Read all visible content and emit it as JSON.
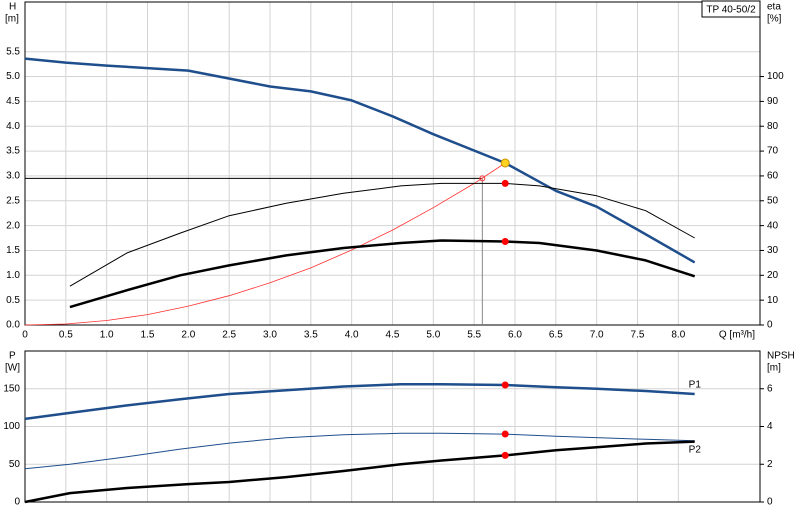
{
  "chart_data": [
    {
      "type": "line",
      "xlabel": "Q [m³/h]",
      "ylabel": "H",
      "ylabel_unit": "[m]",
      "y2label": "eta",
      "y2label_unit": "[%]",
      "legend_title": "TP 40-50/2",
      "legend_position": "top-right",
      "xlim": [
        0,
        9
      ],
      "ylim": [
        0,
        6.5
      ],
      "y2lim": [
        0,
        130
      ],
      "grid": true,
      "xticks": [
        0,
        0.5,
        {
          "value": 1,
          "label": "1.0"
        },
        1.5,
        {
          "value": 2,
          "label": "2.0"
        },
        2.5,
        {
          "value": 3,
          "label": "3.0"
        },
        3.5,
        {
          "value": 4,
          "label": "4.0"
        },
        4.5,
        {
          "value": 5,
          "label": "5.0"
        },
        5.5,
        {
          "value": 6,
          "label": "6.0"
        },
        6.5,
        {
          "value": 7,
          "label": "7.0"
        },
        7.5,
        {
          "value": 8,
          "label": "8.0"
        }
      ],
      "yticks": [
        {
          "value": 0,
          "label": "0.0"
        },
        0.5,
        {
          "value": 1,
          "label": "1.0"
        },
        1.5,
        {
          "value": 2,
          "label": "2.0"
        },
        2.5,
        {
          "value": 3,
          "label": "3.0"
        },
        3.5,
        {
          "value": 4,
          "label": "4.0"
        },
        4.5,
        {
          "value": 5,
          "label": "5.0"
        },
        5.5
      ],
      "y2ticks": [
        0,
        10,
        20,
        30,
        40,
        50,
        60,
        70,
        80,
        90,
        100
      ],
      "series": [
        {
          "color": "#1f4e8c",
          "width": 2.5,
          "x": [
            0,
            0.5,
            1,
            2,
            3,
            3.5,
            4,
            4.5,
            5,
            5.88,
            6.5,
            7,
            7.5,
            8.2
          ],
          "values": [
            5.36,
            5.28,
            5.22,
            5.12,
            4.8,
            4.7,
            4.52,
            4.2,
            3.84,
            3.26,
            2.7,
            2.38,
            1.92,
            1.26
          ]
        },
        {
          "color": "#ff3030",
          "width": 0.8,
          "x": [
            0,
            0.5,
            1,
            1.5,
            2,
            2.5,
            3,
            3.5,
            4,
            4.5,
            5,
            5.5,
            5.88
          ],
          "values": [
            0,
            0.02,
            0.09,
            0.21,
            0.38,
            0.59,
            0.85,
            1.15,
            1.51,
            1.91,
            2.36,
            2.85,
            3.26
          ]
        },
        {
          "color": "#000000",
          "width": 1,
          "axis": "y2",
          "x": [
            0.55,
            1.25,
            1.9,
            2.5,
            3.2,
            3.9,
            4.6,
            5.1,
            5.88,
            6.3,
            7,
            7.6,
            8.2
          ],
          "values": [
            15.6,
            29,
            37,
            44,
            49,
            53,
            56,
            57,
            57,
            56,
            52,
            46,
            35
          ],
          "markers": [
            {
              "x": 5.88,
              "y": 57,
              "color": "#ff0000"
            }
          ]
        },
        {
          "color": "#000000",
          "width": 2.5,
          "axis": "y2",
          "x": [
            0.55,
            1.25,
            1.9,
            2.5,
            3.2,
            3.9,
            4.6,
            5.1,
            5.88,
            6.3,
            7,
            7.6,
            8.2
          ],
          "values": [
            7.2,
            14,
            20,
            24,
            28,
            31,
            33,
            34,
            33.6,
            33,
            30,
            26,
            19.6
          ],
          "markers": [
            {
              "x": 5.88,
              "y": 33.6,
              "color": "#ff0000"
            }
          ]
        }
      ],
      "duty_point": {
        "x": 5.88,
        "y": 3.26,
        "color": "#ffd21f"
      },
      "reference": {
        "x": 5.6,
        "y": 2.95
      }
    },
    {
      "type": "line",
      "ylabel": "P",
      "ylabel_unit": "[W]",
      "y2label": "NPSH",
      "y2label_unit": "[m]",
      "xlim": [
        0,
        9
      ],
      "ylim": [
        0,
        200
      ],
      "y2lim": [
        0,
        8
      ],
      "grid": true,
      "yticks": [
        0,
        50,
        100,
        150
      ],
      "y2ticks": [
        0,
        2,
        4,
        6
      ],
      "series": [
        {
          "name": "P1",
          "color": "#1f4e8c",
          "width": 2.5,
          "x": [
            0,
            0.55,
            1.25,
            1.9,
            2.5,
            3.2,
            3.9,
            4.6,
            5.1,
            5.88,
            6.5,
            7,
            7.6,
            8.2
          ],
          "values": [
            110,
            118,
            128,
            136,
            143,
            148,
            153,
            156,
            156,
            155,
            152,
            150,
            147,
            143
          ],
          "markers": [
            {
              "x": 5.88,
              "y": 155,
              "color": "#ff0000"
            }
          ]
        },
        {
          "name": "P2",
          "color": "#1f4e8c",
          "width": 1,
          "x": [
            0,
            0.55,
            1.25,
            1.9,
            2.5,
            3.2,
            3.9,
            4.6,
            5.1,
            5.88,
            6.5,
            7.6,
            8.2
          ],
          "values": [
            44,
            50,
            60,
            70,
            78,
            85,
            89,
            91,
            91,
            90,
            87,
            83,
            81
          ],
          "markers": [
            {
              "x": 5.88,
              "y": 90,
              "color": "#ff0000"
            }
          ]
        },
        {
          "color": "#000000",
          "width": 2.5,
          "axis": "y2",
          "x": [
            0,
            0.55,
            1.25,
            2,
            2.5,
            3.2,
            3.9,
            4.6,
            5.1,
            5.88,
            6.5,
            7,
            7.6,
            8.2
          ],
          "values": [
            0,
            0.47,
            0.74,
            0.95,
            1.06,
            1.32,
            1.64,
            2,
            2.2,
            2.47,
            2.74,
            2.9,
            3.1,
            3.2
          ],
          "markers": [
            {
              "x": 5.88,
              "y": 2.47,
              "color": "#ff0000"
            }
          ]
        }
      ]
    }
  ]
}
